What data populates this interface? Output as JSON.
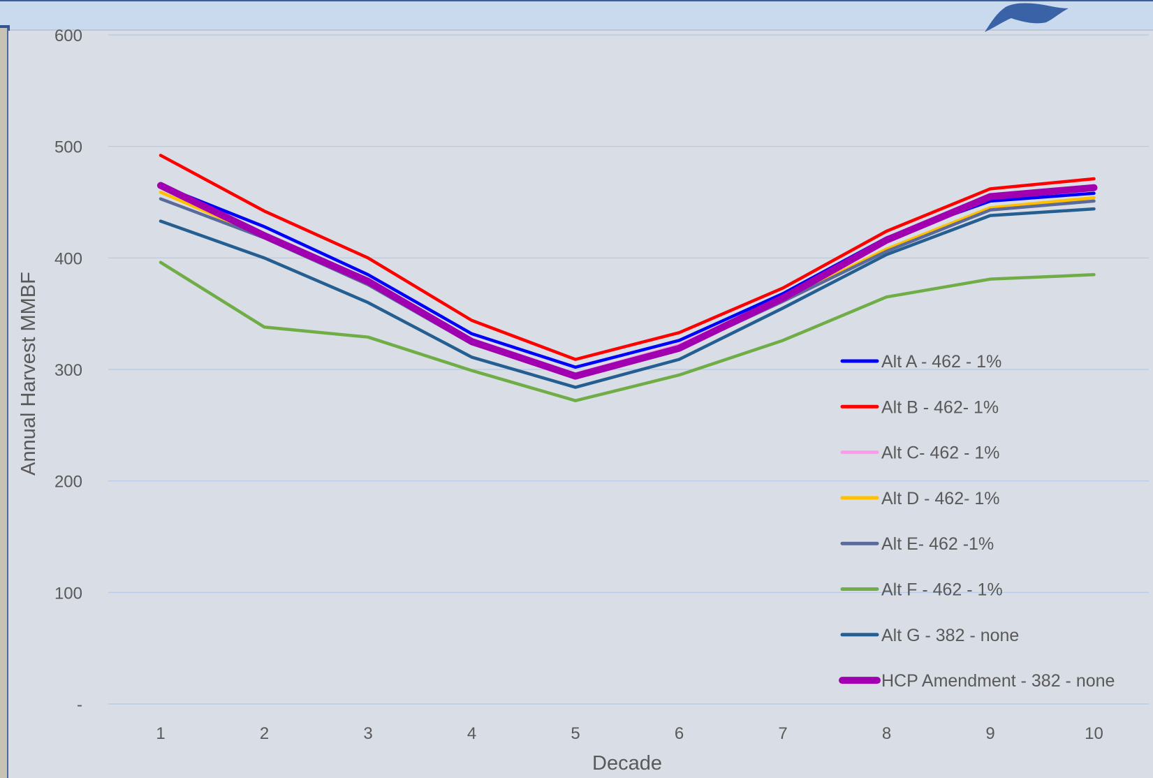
{
  "chart_data": {
    "type": "line",
    "title": "",
    "xlabel": "Decade",
    "ylabel": "Annual Harvest MMBF",
    "x": [
      1,
      2,
      3,
      4,
      5,
      6,
      7,
      8,
      9,
      10
    ],
    "x_tick_labels": [
      "1",
      "2",
      "3",
      "4",
      "5",
      "6",
      "7",
      "8",
      "9",
      "10"
    ],
    "ylim": [
      0,
      600
    ],
    "y_ticks": [
      0,
      100,
      200,
      300,
      400,
      500,
      600
    ],
    "y_tick_labels": [
      "-",
      "100",
      "200",
      "300",
      "400",
      "500",
      "600"
    ],
    "grid": "horizontal",
    "legend_position": "right",
    "series": [
      {
        "name": "Alt A - 462 - 1%",
        "color": "#0000ff",
        "values": [
          465,
          428,
          385,
          332,
          302,
          326,
          368,
          418,
          451,
          458
        ]
      },
      {
        "name": "Alt B - 462- 1%",
        "color": "#ff0000",
        "values": [
          492,
          442,
          400,
          344,
          309,
          333,
          373,
          424,
          462,
          471
        ]
      },
      {
        "name": "Alt C- 462 - 1%",
        "color": "#ff99ee",
        "values": [
          463,
          421,
          381,
          327,
          296,
          322,
          365,
          414,
          454,
          462
        ]
      },
      {
        "name": "Alt D - 462- 1%",
        "color": "#ffc000",
        "values": [
          459,
          419,
          378,
          324,
          295,
          319,
          362,
          408,
          445,
          454
        ]
      },
      {
        "name": "Alt E- 462 -1%",
        "color": "#5a6a9a",
        "values": [
          453,
          418,
          376,
          323,
          294,
          318,
          361,
          406,
          443,
          451
        ]
      },
      {
        "name": "Alt F - 462 - 1%",
        "color": "#70ad47",
        "values": [
          396,
          338,
          329,
          299,
          272,
          295,
          326,
          365,
          381,
          385
        ]
      },
      {
        "name": "Alt G - 382 - none",
        "color": "#255e91",
        "values": [
          433,
          400,
          360,
          311,
          284,
          309,
          355,
          403,
          438,
          444
        ]
      },
      {
        "name": "HCP Amendment - 382 - none",
        "color": "#a000b0",
        "values": [
          465,
          420,
          379,
          325,
          294,
          319,
          364,
          416,
          455,
          463
        ]
      }
    ]
  }
}
